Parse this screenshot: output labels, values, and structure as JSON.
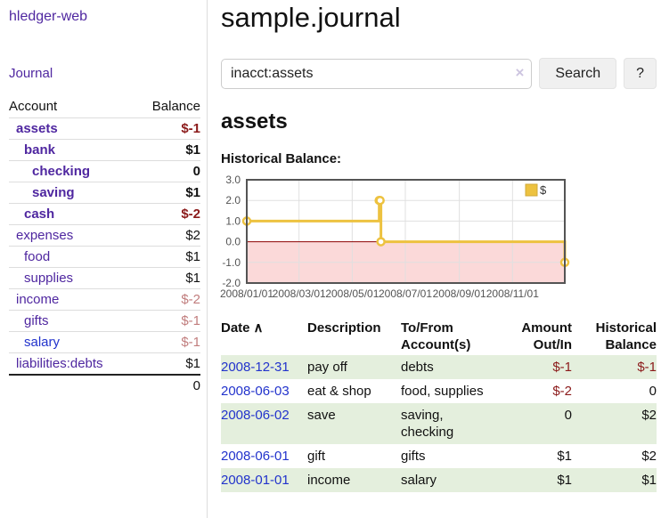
{
  "app": {
    "brand": "hledger-web",
    "nav_journal": "Journal"
  },
  "sidebar": {
    "header": {
      "account": "Account",
      "balance": "Balance"
    },
    "accounts": [
      {
        "name": "assets",
        "balance": "$-1",
        "indent": 0,
        "bold": true
      },
      {
        "name": "bank",
        "balance": "$1",
        "indent": 1,
        "bold": true
      },
      {
        "name": "checking",
        "balance": "0",
        "indent": 2,
        "bold": true
      },
      {
        "name": "saving",
        "balance": "$1",
        "indent": 2,
        "bold": true
      },
      {
        "name": "cash",
        "balance": "$-2",
        "indent": 1,
        "bold": true
      },
      {
        "name": "expenses",
        "balance": "$2",
        "indent": 0,
        "bold": false
      },
      {
        "name": "food",
        "balance": "$1",
        "indent": 1,
        "bold": false
      },
      {
        "name": "supplies",
        "balance": "$1",
        "indent": 1,
        "bold": false
      },
      {
        "name": "income",
        "balance": "$-2",
        "indent": 0,
        "bold": false
      },
      {
        "name": "gifts",
        "balance": "$-1",
        "indent": 1,
        "bold": false
      },
      {
        "name": "salary",
        "balance": "$-1",
        "indent": 1,
        "bold": false,
        "link": "unvisited"
      },
      {
        "name": "liabilities:debts",
        "balance": "$1",
        "indent": 0,
        "bold": false
      }
    ],
    "total": "0"
  },
  "header": {
    "title": "sample.journal"
  },
  "search": {
    "value": "inacct:assets",
    "clear_icon": "×",
    "button": "Search",
    "help_button": "?"
  },
  "account_page": {
    "title": "assets",
    "chart_label": "Historical Balance:"
  },
  "chart_data": {
    "type": "line",
    "step": true,
    "title": "Historical Balance",
    "series": [
      {
        "name": "$",
        "color": "#EDC240",
        "points": [
          [
            "2008-01-01",
            1
          ],
          [
            "2008-06-01",
            2
          ],
          [
            "2008-06-02",
            2
          ],
          [
            "2008-06-03",
            0
          ],
          [
            "2008-12-31",
            -1
          ]
        ]
      }
    ],
    "xlim": [
      "2008-01-01",
      "2008-12-31"
    ],
    "ylim": [
      -2,
      3
    ],
    "x_ticks": [
      "2008/01/01",
      "2008/03/01",
      "2008/05/01",
      "2008/07/01",
      "2008/09/01",
      "2008/11/01"
    ],
    "y_ticks": [
      "3.0",
      "2.0",
      "1.0",
      "0.0",
      "-1.0",
      "-2.0"
    ],
    "legend_position": "top-right",
    "grid": true,
    "colors": {
      "line": "#EDC240",
      "marker_fill": "#ffffff",
      "border": "#545454",
      "gridline": "#e0e0e0",
      "zero_line": "#8b0000",
      "negative_region": "#fbd9d9",
      "axis_label": "#545454"
    }
  },
  "table": {
    "headers": [
      {
        "id": "date",
        "lines": [
          "Date"
        ],
        "align": "left",
        "sort_icon": "∧"
      },
      {
        "id": "description",
        "lines": [
          "Description"
        ],
        "align": "left"
      },
      {
        "id": "accounts",
        "lines": [
          "To/From",
          "Account(s)"
        ],
        "align": "left"
      },
      {
        "id": "amount",
        "lines": [
          "Amount",
          "Out/In"
        ],
        "align": "right"
      },
      {
        "id": "balance",
        "lines": [
          "Historical",
          "Balance"
        ],
        "align": "right"
      }
    ],
    "rows": [
      {
        "date": "2008-12-31",
        "description": "pay off",
        "accounts": "debts",
        "amount": "$-1",
        "balance": "$-1",
        "shade": true
      },
      {
        "date": "2008-06-03",
        "description": "eat & shop",
        "accounts": "food, supplies",
        "amount": "$-2",
        "balance": "0",
        "shade": false
      },
      {
        "date": "2008-06-02",
        "description": "save",
        "accounts": "saving, checking",
        "amount": "0",
        "balance": "$2",
        "shade": true
      },
      {
        "date": "2008-06-01",
        "description": "gift",
        "accounts": "gifts",
        "amount": "$1",
        "balance": "$2",
        "shade": false
      },
      {
        "date": "2008-01-01",
        "description": "income",
        "accounts": "salary",
        "amount": "$1",
        "balance": "$1",
        "shade": true
      }
    ]
  },
  "colors": {
    "link_purple": "#4f27a0",
    "link_blue": "#2233cc",
    "negative_strong": "#8b1a1a",
    "negative_weak": "#c17d7d",
    "row_green": "#e4efdd"
  }
}
